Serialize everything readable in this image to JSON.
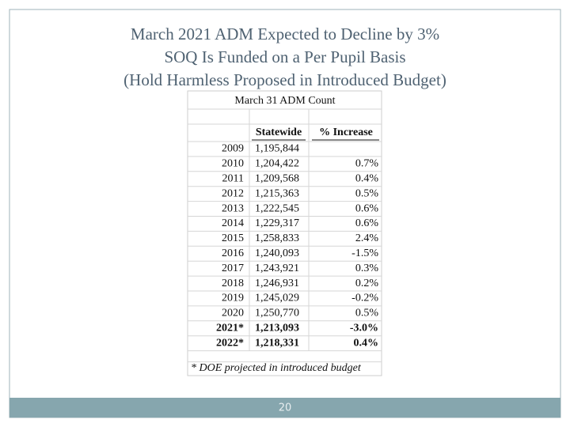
{
  "slide": {
    "title_lines": [
      "March 2021 ADM Expected to Decline by 3%",
      "SOQ Is Funded on a Per Pupil Basis",
      "(Hold Harmless Proposed in Introduced Budget)"
    ],
    "page_number": "20"
  },
  "table": {
    "title": "March 31 ADM Count",
    "header": [
      "Statewide",
      "% Increase"
    ],
    "rows": [
      [
        "2009",
        "1,195,844"
      ],
      [
        "2010",
        "1,204,422",
        "0.7%"
      ],
      [
        "2011",
        "1,209,568",
        "0.4%"
      ],
      [
        "2012",
        "1,215,363",
        "0.5%"
      ],
      [
        "2013",
        "1,222,545",
        "0.6%"
      ],
      [
        "2014",
        "1,229,317",
        "0.6%"
      ],
      [
        "2015",
        "1,258,833",
        "2.4%"
      ],
      [
        "2016",
        "1,240,093",
        "-1.5%"
      ],
      [
        "2017",
        "1,243,921",
        "0.3%"
      ],
      [
        "2018",
        "1,246,931",
        "0.2%"
      ],
      [
        "2019",
        "1,245,029",
        "-0.2%"
      ],
      [
        "2020",
        "1,250,770",
        "0.5%"
      ],
      [
        "2021*",
        "1,213,093",
        "-3.0%"
      ],
      [
        "2022*",
        "1,218,331",
        "0.4%"
      ]
    ],
    "footnote": "* DOE projected in introduced budget"
  }
}
